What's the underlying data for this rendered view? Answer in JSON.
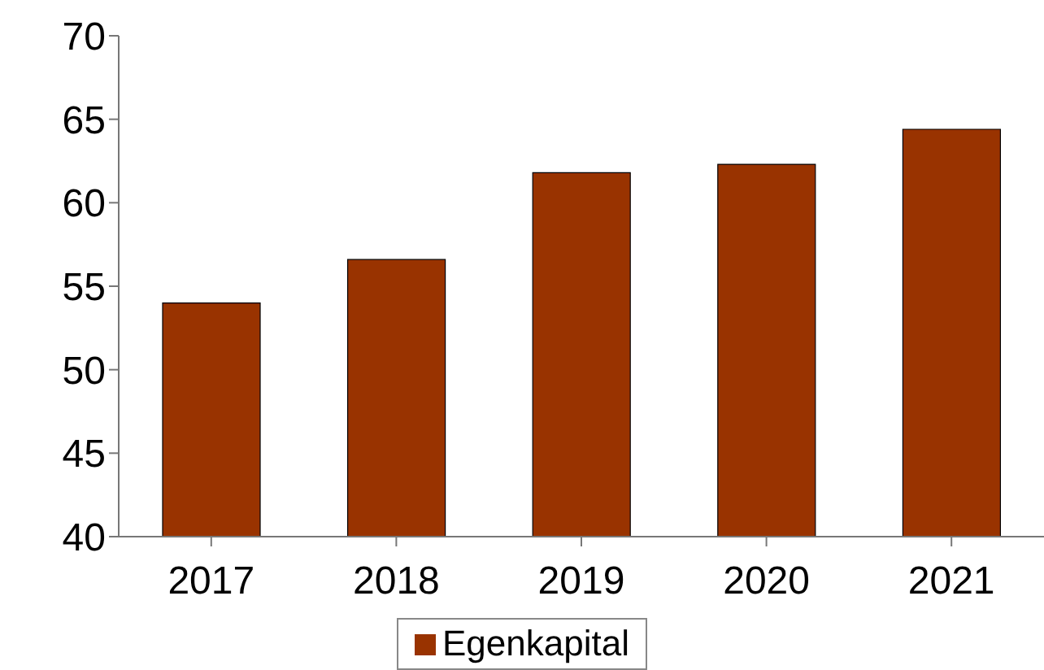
{
  "chart_data": {
    "type": "bar",
    "categories": [
      "2017",
      "2018",
      "2019",
      "2020",
      "2021"
    ],
    "series": [
      {
        "name": "Egenkapital",
        "color": "#993300",
        "values": [
          54,
          56.6,
          61.8,
          62.3,
          64.4
        ]
      }
    ],
    "ylim": [
      40,
      70
    ],
    "yticks": [
      40,
      45,
      50,
      55,
      60,
      65,
      70
    ],
    "grid": false,
    "legend": "bottom"
  }
}
